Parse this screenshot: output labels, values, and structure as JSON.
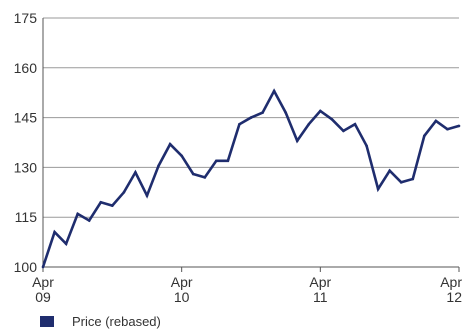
{
  "chart_data": {
    "type": "line",
    "title": "",
    "xlabel": "",
    "ylabel": "",
    "ylim": [
      100,
      175
    ],
    "yticks": [
      100,
      115,
      130,
      145,
      160,
      175
    ],
    "ytick_labels": [
      "100",
      "115",
      "130",
      "145",
      "160",
      "175"
    ],
    "xlim": [
      0,
      36
    ],
    "xticks": [
      {
        "x": 0,
        "month": "Apr",
        "year": "09"
      },
      {
        "x": 12,
        "month": "Apr",
        "year": "10"
      },
      {
        "x": 24,
        "month": "Apr",
        "year": "11"
      },
      {
        "x": 36,
        "month": "Apr",
        "year": "12"
      }
    ],
    "grid": "horizontal",
    "legend_position": "bottom-left",
    "series": [
      {
        "name": "Price (rebased)",
        "color": "#1f2d6e",
        "x": [
          0,
          1,
          2,
          3,
          4,
          5,
          6,
          7,
          8,
          9,
          10,
          11,
          12,
          13,
          14,
          15,
          16,
          17,
          18,
          19,
          20,
          21,
          22,
          23,
          24,
          25,
          26,
          27,
          28,
          29,
          30,
          31,
          32,
          33,
          34,
          35,
          36
        ],
        "values": [
          100,
          110.5,
          107,
          116,
          114,
          119.5,
          118.5,
          122.5,
          128.5,
          121.5,
          130.5,
          137,
          133.5,
          128,
          127,
          132,
          132,
          143,
          145,
          146.5,
          153,
          146.5,
          138,
          143,
          147,
          144.5,
          141,
          143,
          136.5,
          123.5,
          129,
          125.5,
          126.5,
          139.5,
          144,
          141.5,
          142.5
        ]
      }
    ]
  }
}
